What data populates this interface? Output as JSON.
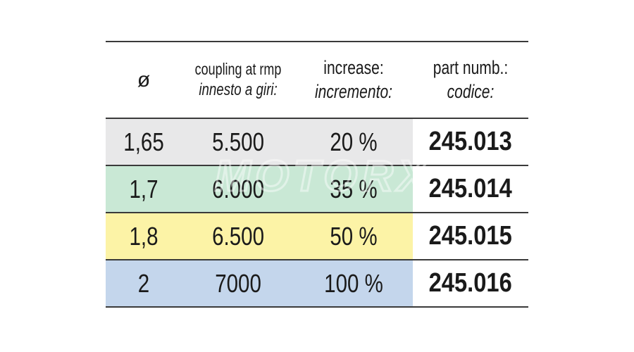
{
  "table": {
    "headers": [
      {
        "en": "ø",
        "it": ""
      },
      {
        "en": "coupling at rmp",
        "it": "innesto a giri:"
      },
      {
        "en": "increase:",
        "it": "incremento:"
      },
      {
        "en": "part numb.:",
        "it": "codice:"
      }
    ],
    "rows": [
      {
        "diameter": "1,65",
        "rpm": "5.500",
        "increase": "20 %",
        "code": "245.013"
      },
      {
        "diameter": "1,7",
        "rpm": "6.000",
        "increase": "35 %",
        "code": "245.014"
      },
      {
        "diameter": "1,8",
        "rpm": "6.500",
        "increase": "50 %",
        "code": "245.015"
      },
      {
        "diameter": "2",
        "rpm": "7000",
        "increase": "100 %",
        "code": "245.016"
      }
    ]
  },
  "watermark": "MOTORX",
  "colors": {
    "row1": "#e8e8e9",
    "row2": "#c9e8d5",
    "row3": "#fcf3a6",
    "row4": "#c4d6ec",
    "code_bg": "#ffffff"
  }
}
